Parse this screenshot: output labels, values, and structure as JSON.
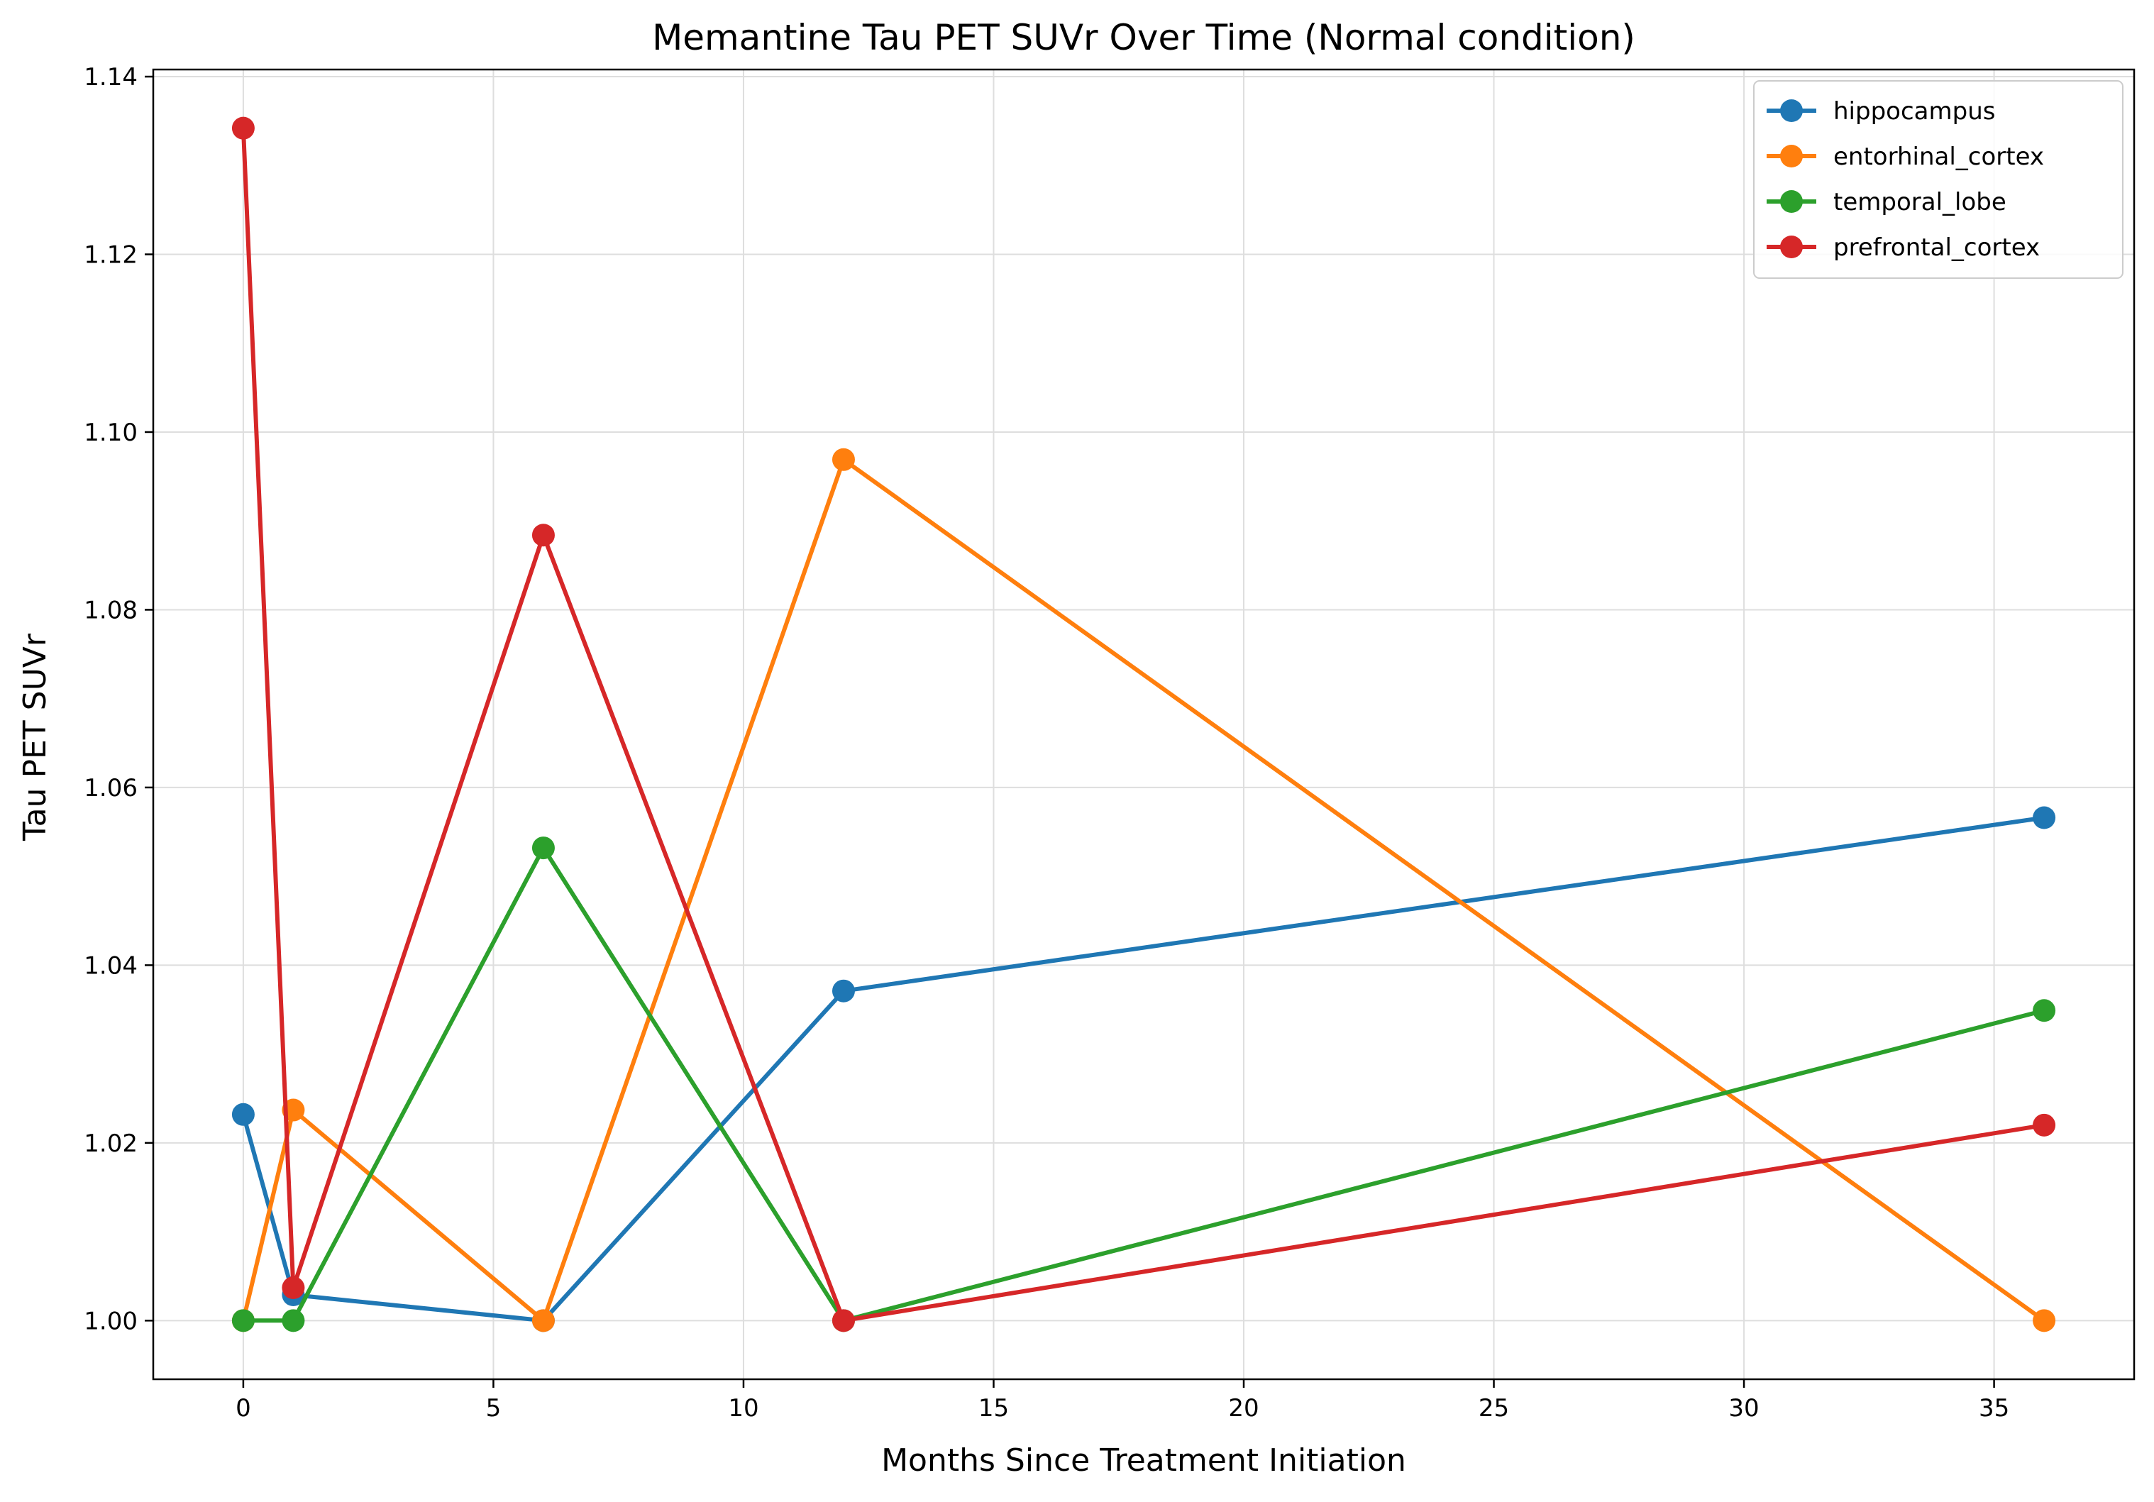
{
  "chart_data": {
    "type": "line",
    "title": "Memantine Tau PET SUVr Over Time (Normal condition)",
    "xlabel": "Months Since Treatment Initiation",
    "ylabel": "Tau PET SUVr",
    "xlim": [
      -1.8,
      37.8
    ],
    "ylim": [
      0.9934,
      1.1408
    ],
    "xticks": [
      0,
      5,
      10,
      15,
      20,
      25,
      30,
      35
    ],
    "yticks": [
      1.0,
      1.02,
      1.04,
      1.06,
      1.08,
      1.1,
      1.12,
      1.14
    ],
    "ytick_labels": [
      "1.00",
      "1.02",
      "1.04",
      "1.06",
      "1.08",
      "1.10",
      "1.12",
      "1.14"
    ],
    "grid": true,
    "legend_position": "top-right",
    "x": [
      0,
      1,
      6,
      12,
      36
    ],
    "series": [
      {
        "name": "hippocampus",
        "color": "#1f77b4",
        "values": [
          1.0232,
          1.0029,
          1.0,
          1.0371,
          1.0566
        ]
      },
      {
        "name": "entorhinal_cortex",
        "color": "#ff7f0e",
        "values": [
          1.0,
          1.0237,
          1.0,
          1.0969,
          1.0
        ]
      },
      {
        "name": "temporal_lobe",
        "color": "#2ca02c",
        "values": [
          1.0,
          1.0,
          1.0532,
          1.0,
          1.0349
        ]
      },
      {
        "name": "prefrontal_cortex",
        "color": "#d62728",
        "values": [
          1.1342,
          1.0037,
          1.0884,
          1.0,
          1.022
        ]
      }
    ]
  }
}
